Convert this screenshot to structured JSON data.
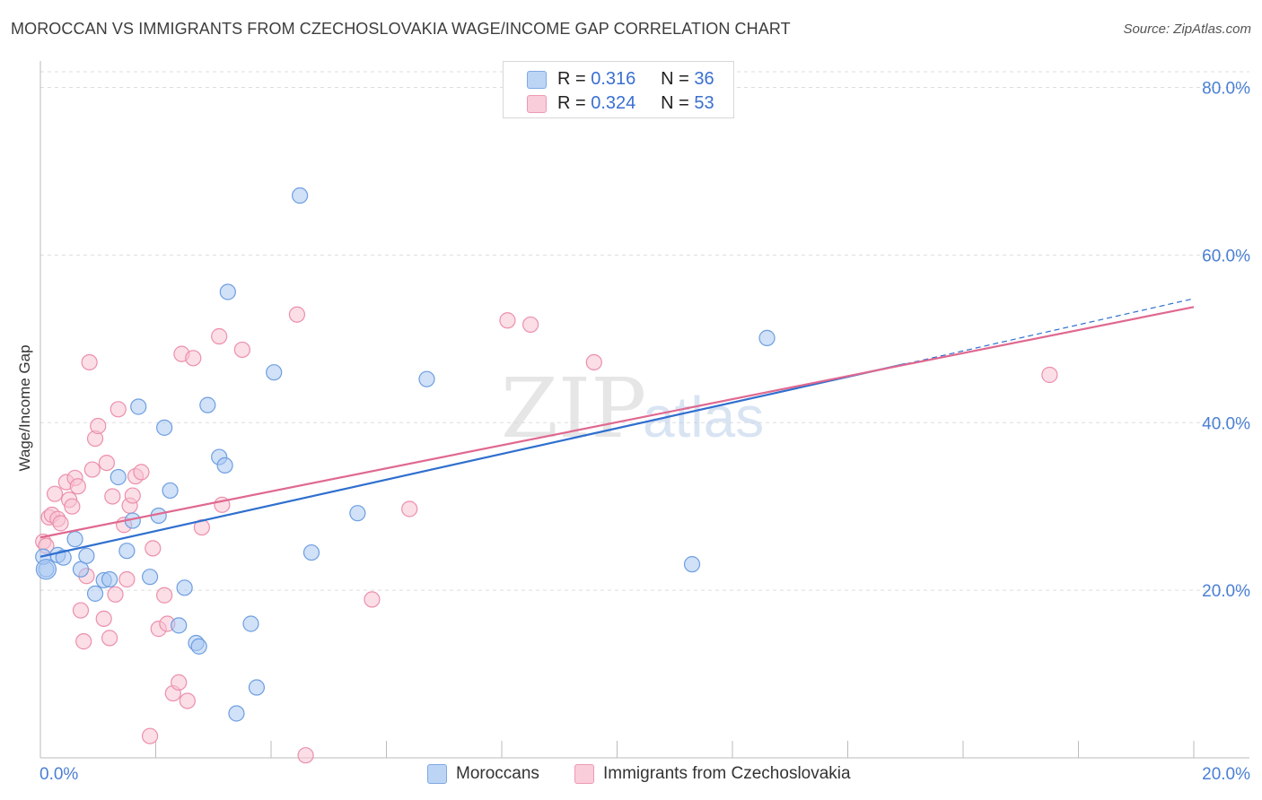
{
  "header": {
    "title": "MOROCCAN VS IMMIGRANTS FROM CZECHOSLOVAKIA WAGE/INCOME GAP CORRELATION CHART",
    "source": "Source: ZipAtlas.com"
  },
  "legend_top": {
    "rows": [
      {
        "r_label": "R =",
        "r_value": "0.316",
        "n_label": "N =",
        "n_value": "36"
      },
      {
        "r_label": "R =",
        "r_value": "0.324",
        "n_label": "N =",
        "n_value": "53"
      }
    ]
  },
  "watermark": {
    "zip": "ZIP",
    "atlas": "atlas"
  },
  "colors": {
    "blue_fill": "#a9c8f2",
    "blue_stroke": "#6e9ee0",
    "blue_line": "#2f6fcf",
    "pink_fill": "#f7c3d2",
    "pink_stroke": "#ec8fab",
    "pink_line": "#e0688f",
    "tick_label": "#4a7fd4",
    "grid": "#dddddd"
  },
  "chart_data": {
    "type": "scatter",
    "title": "MOROCCAN VS IMMIGRANTS FROM CZECHOSLOVAKIA WAGE/INCOME GAP CORRELATION CHART",
    "xlabel": "",
    "ylabel": "Wage/Income Gap",
    "xlim": [
      0,
      20
    ],
    "ylim": [
      0,
      80
    ],
    "x_tick_labels": [
      {
        "value": 0,
        "label": "0.0%"
      },
      {
        "value": 20,
        "label": "20.0%"
      }
    ],
    "y_tick_labels": [
      {
        "value": 20,
        "label": "20.0%"
      },
      {
        "value": 40,
        "label": "40.0%"
      },
      {
        "value": 60,
        "label": "60.0%"
      },
      {
        "value": 80,
        "label": "80.0%"
      }
    ],
    "grid": true,
    "series": [
      {
        "name": "Moroccans",
        "r": 0.316,
        "n": 36,
        "trend": {
          "x0": 0,
          "y0": 24.0,
          "x1": 15.0,
          "y1": 47.0,
          "dashed_to_x": 20.0,
          "dashed_to_y": 54.8
        },
        "points": [
          [
            0.1,
            22.5
          ],
          [
            0.3,
            24.2
          ],
          [
            0.4,
            23.9
          ],
          [
            0.6,
            26.1
          ],
          [
            0.7,
            22.5
          ],
          [
            0.8,
            24.1
          ],
          [
            0.95,
            19.6
          ],
          [
            1.1,
            21.2
          ],
          [
            1.2,
            21.3
          ],
          [
            1.35,
            33.5
          ],
          [
            1.5,
            24.7
          ],
          [
            1.6,
            28.3
          ],
          [
            1.7,
            41.9
          ],
          [
            1.9,
            21.6
          ],
          [
            2.05,
            28.9
          ],
          [
            2.15,
            39.4
          ],
          [
            2.25,
            31.9
          ],
          [
            2.4,
            15.8
          ],
          [
            2.5,
            20.3
          ],
          [
            2.7,
            13.7
          ],
          [
            2.75,
            13.3
          ],
          [
            2.9,
            42.1
          ],
          [
            3.1,
            35.9
          ],
          [
            3.2,
            34.9
          ],
          [
            3.25,
            55.6
          ],
          [
            3.4,
            5.3
          ],
          [
            3.65,
            16.0
          ],
          [
            3.75,
            8.4
          ],
          [
            4.05,
            46.0
          ],
          [
            4.5,
            67.1
          ],
          [
            4.7,
            24.5
          ],
          [
            5.5,
            29.2
          ],
          [
            6.7,
            45.2
          ],
          [
            11.3,
            23.1
          ],
          [
            12.6,
            50.1
          ],
          [
            0.05,
            24.0
          ]
        ]
      },
      {
        "name": "Immigrants from Czechoslovakia",
        "r": 0.324,
        "n": 53,
        "trend": {
          "x0": 0,
          "y0": 26.3,
          "x1": 20.0,
          "y1": 53.8
        },
        "points": [
          [
            0.05,
            25.8
          ],
          [
            0.1,
            25.3
          ],
          [
            0.15,
            28.7
          ],
          [
            0.2,
            29.0
          ],
          [
            0.25,
            31.5
          ],
          [
            0.3,
            28.5
          ],
          [
            0.35,
            28.0
          ],
          [
            0.45,
            32.9
          ],
          [
            0.5,
            30.8
          ],
          [
            0.55,
            30.0
          ],
          [
            0.6,
            33.4
          ],
          [
            0.65,
            32.4
          ],
          [
            0.7,
            17.6
          ],
          [
            0.75,
            13.9
          ],
          [
            0.8,
            21.7
          ],
          [
            0.85,
            47.2
          ],
          [
            0.9,
            34.4
          ],
          [
            0.95,
            38.1
          ],
          [
            1.0,
            39.6
          ],
          [
            1.1,
            16.6
          ],
          [
            1.15,
            35.2
          ],
          [
            1.2,
            14.3
          ],
          [
            1.25,
            31.2
          ],
          [
            1.35,
            41.6
          ],
          [
            1.3,
            19.5
          ],
          [
            1.45,
            27.8
          ],
          [
            1.5,
            21.3
          ],
          [
            1.55,
            30.1
          ],
          [
            1.6,
            31.3
          ],
          [
            1.65,
            33.6
          ],
          [
            1.75,
            34.1
          ],
          [
            1.9,
            2.6
          ],
          [
            1.95,
            25.0
          ],
          [
            2.05,
            15.4
          ],
          [
            2.15,
            19.4
          ],
          [
            2.2,
            16.0
          ],
          [
            2.3,
            7.7
          ],
          [
            2.4,
            9.0
          ],
          [
            2.45,
            48.2
          ],
          [
            2.55,
            6.8
          ],
          [
            2.65,
            47.7
          ],
          [
            2.8,
            27.5
          ],
          [
            3.1,
            50.3
          ],
          [
            3.15,
            30.2
          ],
          [
            3.5,
            48.7
          ],
          [
            4.45,
            52.9
          ],
          [
            4.6,
            0.3
          ],
          [
            5.75,
            18.9
          ],
          [
            6.4,
            29.7
          ],
          [
            8.1,
            52.2
          ],
          [
            8.5,
            51.7
          ],
          [
            9.6,
            47.2
          ],
          [
            17.5,
            45.7
          ]
        ]
      }
    ]
  }
}
